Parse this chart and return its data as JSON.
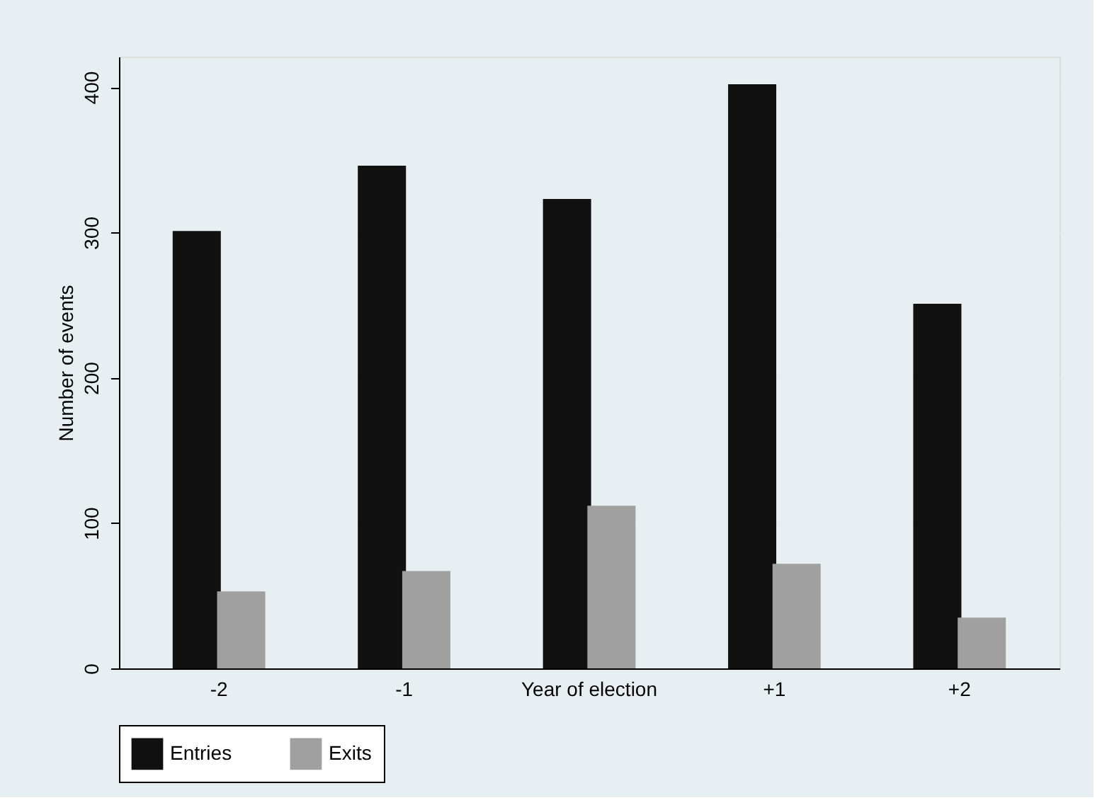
{
  "chart_data": {
    "type": "bar",
    "xlabel": null,
    "ylabel": "Number of events",
    "categories": [
      "-2",
      "-1",
      "Year of election",
      "+1",
      "+2"
    ],
    "series": [
      {
        "name": "Entries",
        "color": "#111111",
        "values": [
          301,
          346,
          323,
          402,
          251
        ]
      },
      {
        "name": "Exits",
        "color": "#a0a0a0",
        "values": [
          53,
          67,
          112,
          72,
          35
        ]
      }
    ],
    "ylim": [
      0,
      421
    ],
    "yticks": [
      0,
      100,
      200,
      300,
      400
    ],
    "grid": "y",
    "legend": "bottom"
  }
}
